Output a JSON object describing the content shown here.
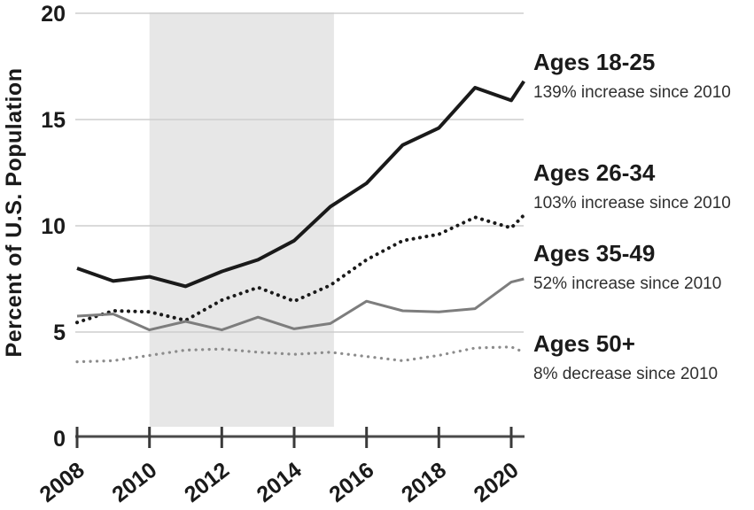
{
  "figure_type": "line-chart-graphic",
  "axes": {
    "y_label": "Percent of U.S. Population",
    "y_ticks": [
      "0",
      "5",
      "10",
      "15",
      "20"
    ],
    "x_ticks": [
      "2008",
      "2010",
      "2012",
      "2014",
      "2016",
      "2018",
      "2020"
    ]
  },
  "legend": {
    "items": [
      {
        "title": "Ages 18-25",
        "subtitle": "139% increase since 2010"
      },
      {
        "title": "Ages 26-34",
        "subtitle": "103% increase since 2010"
      },
      {
        "title": "Ages 35-49",
        "subtitle": "52% increase since 2010"
      },
      {
        "title": "Ages 50+",
        "subtitle": "8% decrease since 2010"
      }
    ]
  },
  "chart_data": {
    "type": "line",
    "title": "",
    "xlabel": "",
    "ylabel": "Percent of U.S. Population",
    "ylim": [
      0,
      20
    ],
    "y_ticks": [
      0,
      5,
      10,
      15,
      20
    ],
    "x_ticks": [
      2008,
      2010,
      2012,
      2014,
      2016,
      2018,
      2020
    ],
    "grid": true,
    "legend_position": "right",
    "shaded_region": {
      "x_start": 2010,
      "x_end": 2015.1,
      "color": "#e7e7e7"
    },
    "x": [
      2008,
      2009,
      2010,
      2011,
      2012,
      2013,
      2014,
      2015,
      2016,
      2017,
      2018,
      2019,
      2020,
      2020.35
    ],
    "series": [
      {
        "name": "Ages 18-25",
        "annotation": "139% increase since 2010",
        "style": "solid",
        "color": "#1a1a1a",
        "width": 4,
        "values": [
          8.0,
          7.4,
          7.6,
          7.15,
          7.85,
          8.4,
          9.3,
          10.9,
          12.0,
          13.8,
          14.6,
          16.5,
          15.9,
          16.8
        ]
      },
      {
        "name": "Ages 26-34",
        "annotation": "103% increase since 2010",
        "style": "dotted",
        "color": "#1a1a1a",
        "width": 4,
        "values": [
          5.45,
          6.0,
          5.95,
          5.55,
          6.5,
          7.1,
          6.45,
          7.2,
          8.4,
          9.3,
          9.6,
          10.4,
          9.9,
          10.5
        ]
      },
      {
        "name": "Ages 35-49",
        "annotation": "52% increase since 2010",
        "style": "solid",
        "color": "#7d7d7d",
        "width": 3,
        "values": [
          5.75,
          5.85,
          5.1,
          5.5,
          5.1,
          5.7,
          5.15,
          5.4,
          6.45,
          6.0,
          5.95,
          6.1,
          7.35,
          7.5
        ]
      },
      {
        "name": "Ages 50+",
        "annotation": "8% decrease since 2010",
        "style": "dotted",
        "color": "#8c8c8c",
        "width": 3.2,
        "values": [
          3.6,
          3.65,
          3.9,
          4.15,
          4.2,
          4.05,
          3.95,
          4.05,
          3.85,
          3.65,
          3.9,
          4.25,
          4.3,
          4.05
        ]
      }
    ]
  }
}
